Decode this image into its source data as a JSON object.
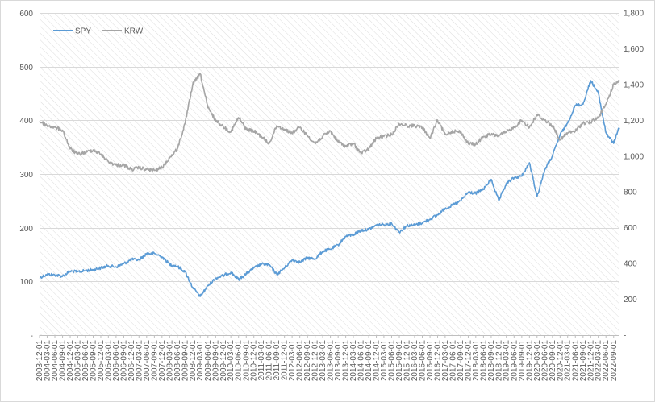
{
  "chart_data": {
    "type": "line",
    "title": "",
    "xlabel": "",
    "ylabel": "",
    "legend_position": "top-left",
    "grid": "horizontal",
    "x_range": [
      "2003-12-01",
      "2022-10-31"
    ],
    "x_tick_labels": [
      "2003-12-01",
      "2004-03-01",
      "2004-06-01",
      "2004-09-01",
      "2004-12-01",
      "2005-03-01",
      "2005-06-01",
      "2005-09-01",
      "2005-12-01",
      "2006-03-01",
      "2006-06-01",
      "2006-09-01",
      "2006-12-01",
      "2007-03-01",
      "2007-06-01",
      "2007-09-01",
      "2007-12-01",
      "2008-03-01",
      "2008-06-01",
      "2008-09-01",
      "2008-12-01",
      "2009-03-01",
      "2009-06-01",
      "2009-09-01",
      "2009-12-01",
      "2010-03-01",
      "2010-06-01",
      "2010-09-01",
      "2010-12-01",
      "2011-03-01",
      "2011-06-01",
      "2011-09-01",
      "2011-12-01",
      "2012-03-01",
      "2012-06-01",
      "2012-09-01",
      "2012-12-01",
      "2013-03-01",
      "2013-06-01",
      "2013-09-01",
      "2013-12-01",
      "2014-03-01",
      "2014-06-01",
      "2014-09-01",
      "2014-12-01",
      "2015-03-01",
      "2015-06-01",
      "2015-09-01",
      "2015-12-01",
      "2016-03-01",
      "2016-06-01",
      "2016-09-01",
      "2016-12-01",
      "2017-03-01",
      "2017-06-01",
      "2017-09-01",
      "2017-12-01",
      "2018-03-01",
      "2018-06-01",
      "2018-09-01",
      "2018-12-01",
      "2019-03-01",
      "2019-06-01",
      "2019-09-01",
      "2019-12-01",
      "2020-03-01",
      "2020-06-01",
      "2020-09-01",
      "2020-12-01",
      "2021-03-01",
      "2021-06-01",
      "2021-09-01",
      "2021-12-01",
      "2022-03-01",
      "2022-06-01",
      "2022-09-01"
    ],
    "y_left": {
      "range": [
        0,
        600
      ],
      "tick_labels": [
        "-",
        "100",
        "200",
        "300",
        "400",
        "500",
        "600"
      ]
    },
    "y_right": {
      "range": [
        0,
        1800
      ],
      "tick_labels": [
        "-",
        "200",
        "400",
        "600",
        "800",
        "1,000",
        "1,200",
        "1,400",
        "1,600",
        "1,800"
      ]
    },
    "series": [
      {
        "name": "SPY",
        "axis": "left",
        "color": "#5b9bd5",
        "points": [
          [
            "2003-12-01",
            107
          ],
          [
            "2004-03-01",
            113
          ],
          [
            "2004-06-01",
            112
          ],
          [
            "2004-09-01",
            110
          ],
          [
            "2004-12-01",
            119
          ],
          [
            "2005-03-01",
            118
          ],
          [
            "2005-06-01",
            120
          ],
          [
            "2005-09-01",
            122
          ],
          [
            "2005-12-01",
            125
          ],
          [
            "2006-03-01",
            129
          ],
          [
            "2006-06-01",
            127
          ],
          [
            "2006-09-01",
            133
          ],
          [
            "2006-12-01",
            141
          ],
          [
            "2007-03-01",
            140
          ],
          [
            "2007-06-01",
            152
          ],
          [
            "2007-09-01",
            152
          ],
          [
            "2007-12-01",
            146
          ],
          [
            "2008-03-01",
            132
          ],
          [
            "2008-06-01",
            128
          ],
          [
            "2008-09-01",
            118
          ],
          [
            "2008-12-01",
            89
          ],
          [
            "2009-03-01",
            72
          ],
          [
            "2009-06-01",
            92
          ],
          [
            "2009-09-01",
            106
          ],
          [
            "2009-12-01",
            111
          ],
          [
            "2010-03-01",
            117
          ],
          [
            "2010-06-01",
            104
          ],
          [
            "2010-09-01",
            114
          ],
          [
            "2010-12-01",
            125
          ],
          [
            "2011-03-01",
            132
          ],
          [
            "2011-06-01",
            131
          ],
          [
            "2011-09-01",
            113
          ],
          [
            "2011-12-01",
            125
          ],
          [
            "2012-03-01",
            140
          ],
          [
            "2012-06-01",
            136
          ],
          [
            "2012-09-01",
            144
          ],
          [
            "2012-12-01",
            142
          ],
          [
            "2013-03-01",
            156
          ],
          [
            "2013-06-01",
            160
          ],
          [
            "2013-09-01",
            168
          ],
          [
            "2013-12-01",
            184
          ],
          [
            "2014-03-01",
            187
          ],
          [
            "2014-06-01",
            195
          ],
          [
            "2014-09-01",
            197
          ],
          [
            "2014-12-01",
            205
          ],
          [
            "2015-03-01",
            206
          ],
          [
            "2015-06-01",
            208
          ],
          [
            "2015-09-01",
            192
          ],
          [
            "2015-12-01",
            204
          ],
          [
            "2016-03-01",
            205
          ],
          [
            "2016-06-01",
            209
          ],
          [
            "2016-09-01",
            216
          ],
          [
            "2016-12-01",
            224
          ],
          [
            "2017-03-01",
            236
          ],
          [
            "2017-06-01",
            242
          ],
          [
            "2017-09-01",
            250
          ],
          [
            "2017-12-01",
            266
          ],
          [
            "2018-03-01",
            264
          ],
          [
            "2018-06-01",
            272
          ],
          [
            "2018-09-01",
            290
          ],
          [
            "2018-12-01",
            250
          ],
          [
            "2019-03-01",
            282
          ],
          [
            "2019-06-01",
            293
          ],
          [
            "2019-09-01",
            296
          ],
          [
            "2019-12-01",
            321
          ],
          [
            "2020-03-01",
            258
          ],
          [
            "2020-06-01",
            308
          ],
          [
            "2020-09-01",
            334
          ],
          [
            "2020-12-01",
            373
          ],
          [
            "2021-03-01",
            395
          ],
          [
            "2021-06-01",
            428
          ],
          [
            "2021-09-01",
            430
          ],
          [
            "2021-12-01",
            474
          ],
          [
            "2022-03-01",
            451
          ],
          [
            "2022-06-01",
            377
          ],
          [
            "2022-09-01",
            357
          ],
          [
            "2022-10-31",
            386
          ]
        ]
      },
      {
        "name": "KRW",
        "axis": "right",
        "color": "#a5a5a5",
        "points": [
          [
            "2003-12-01",
            1195
          ],
          [
            "2004-03-01",
            1170
          ],
          [
            "2004-06-01",
            1160
          ],
          [
            "2004-09-01",
            1145
          ],
          [
            "2004-12-01",
            1040
          ],
          [
            "2005-03-01",
            1010
          ],
          [
            "2005-06-01",
            1020
          ],
          [
            "2005-09-01",
            1035
          ],
          [
            "2005-12-01",
            1010
          ],
          [
            "2006-03-01",
            970
          ],
          [
            "2006-06-01",
            950
          ],
          [
            "2006-09-01",
            950
          ],
          [
            "2006-12-01",
            925
          ],
          [
            "2007-03-01",
            935
          ],
          [
            "2007-06-01",
            925
          ],
          [
            "2007-09-01",
            920
          ],
          [
            "2007-12-01",
            935
          ],
          [
            "2008-03-01",
            990
          ],
          [
            "2008-06-01",
            1040
          ],
          [
            "2008-09-01",
            1180
          ],
          [
            "2008-12-01",
            1400
          ],
          [
            "2009-03-01",
            1460
          ],
          [
            "2009-06-01",
            1270
          ],
          [
            "2009-09-01",
            1200
          ],
          [
            "2009-12-01",
            1165
          ],
          [
            "2010-03-01",
            1135
          ],
          [
            "2010-06-01",
            1215
          ],
          [
            "2010-09-01",
            1150
          ],
          [
            "2010-12-01",
            1140
          ],
          [
            "2011-03-01",
            1110
          ],
          [
            "2011-06-01",
            1070
          ],
          [
            "2011-09-01",
            1170
          ],
          [
            "2011-12-01",
            1150
          ],
          [
            "2012-03-01",
            1130
          ],
          [
            "2012-06-01",
            1160
          ],
          [
            "2012-09-01",
            1115
          ],
          [
            "2012-12-01",
            1070
          ],
          [
            "2013-03-01",
            1110
          ],
          [
            "2013-06-01",
            1140
          ],
          [
            "2013-09-01",
            1080
          ],
          [
            "2013-12-01",
            1055
          ],
          [
            "2014-03-01",
            1070
          ],
          [
            "2014-06-01",
            1015
          ],
          [
            "2014-09-01",
            1040
          ],
          [
            "2014-12-01",
            1100
          ],
          [
            "2015-03-01",
            1110
          ],
          [
            "2015-06-01",
            1120
          ],
          [
            "2015-09-01",
            1180
          ],
          [
            "2015-12-01",
            1170
          ],
          [
            "2016-03-01",
            1170
          ],
          [
            "2016-06-01",
            1160
          ],
          [
            "2016-09-01",
            1100
          ],
          [
            "2016-12-01",
            1200
          ],
          [
            "2017-03-01",
            1120
          ],
          [
            "2017-06-01",
            1140
          ],
          [
            "2017-09-01",
            1135
          ],
          [
            "2017-12-01",
            1070
          ],
          [
            "2018-03-01",
            1065
          ],
          [
            "2018-06-01",
            1110
          ],
          [
            "2018-09-01",
            1120
          ],
          [
            "2018-12-01",
            1115
          ],
          [
            "2019-03-01",
            1135
          ],
          [
            "2019-06-01",
            1160
          ],
          [
            "2019-09-01",
            1200
          ],
          [
            "2019-12-01",
            1160
          ],
          [
            "2020-03-01",
            1230
          ],
          [
            "2020-06-01",
            1200
          ],
          [
            "2020-09-01",
            1170
          ],
          [
            "2020-12-01",
            1090
          ],
          [
            "2021-03-01",
            1130
          ],
          [
            "2021-06-01",
            1140
          ],
          [
            "2021-09-01",
            1185
          ],
          [
            "2021-12-01",
            1190
          ],
          [
            "2022-03-01",
            1215
          ],
          [
            "2022-06-01",
            1290
          ],
          [
            "2022-09-01",
            1400
          ],
          [
            "2022-10-31",
            1420
          ]
        ]
      }
    ]
  }
}
